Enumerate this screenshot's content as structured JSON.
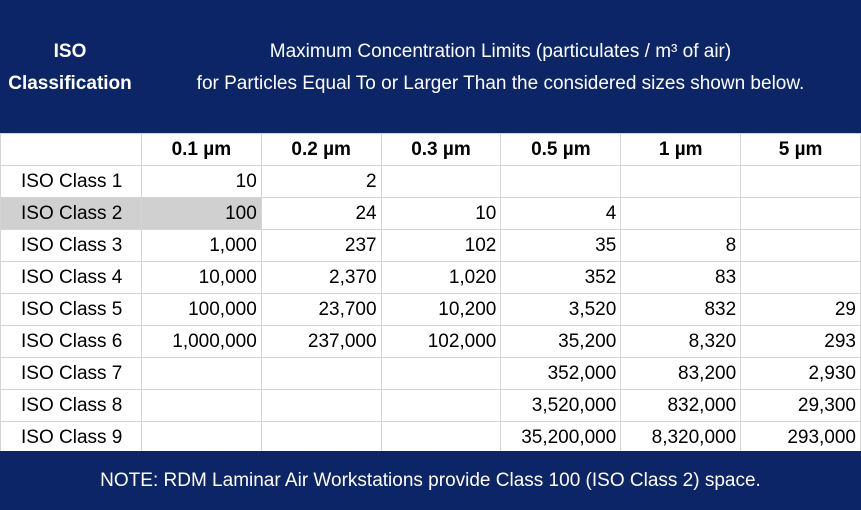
{
  "header": {
    "iso_line1": "ISO",
    "iso_line2": "Classification",
    "title_line1": "Maximum Concentration Limits (particulates / m³ of air)",
    "title_line2": "for Particles Equal To or Larger Than the considered sizes shown below."
  },
  "table": {
    "columns": [
      "",
      "0.1 µm",
      "0.2 µm",
      "0.3 µm",
      "0.5 µm",
      "1 µm",
      "5 µm"
    ],
    "rows": [
      [
        "ISO Class 1",
        "10",
        "2",
        "",
        "",
        "",
        ""
      ],
      [
        "ISO Class 2",
        "100",
        "24",
        "10",
        "4",
        "",
        ""
      ],
      [
        "ISO Class 3",
        "1,000",
        "237",
        "102",
        "35",
        "8",
        ""
      ],
      [
        "ISO Class 4",
        "10,000",
        "2,370",
        "1,020",
        "352",
        "83",
        ""
      ],
      [
        "ISO Class 5",
        "100,000",
        "23,700",
        "10,200",
        "3,520",
        "832",
        "29"
      ],
      [
        "ISO Class 6",
        "1,000,000",
        "237,000",
        "102,000",
        "35,200",
        "8,320",
        "293"
      ],
      [
        "ISO Class 7",
        "",
        "",
        "",
        "352,000",
        "83,200",
        "2,930"
      ],
      [
        "ISO Class 8",
        "",
        "",
        "",
        "3,520,000",
        "832,000",
        "29,300"
      ],
      [
        "ISO Class 9",
        "",
        "",
        "",
        "35,200,000",
        "8,320,000",
        "293,000"
      ]
    ],
    "highlight_color": "#d0d0d0"
  },
  "footer": {
    "note": "NOTE:  RDM Laminar Air Workstations provide Class 100 (ISO Class 2) space."
  },
  "colors": {
    "header_bg": "#0b2566",
    "header_text": "#ffffff"
  }
}
